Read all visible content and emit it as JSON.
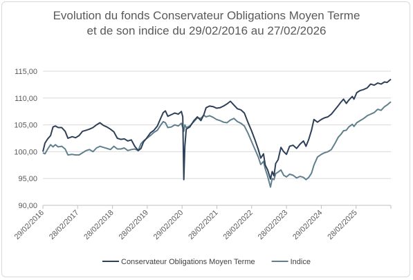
{
  "chart_data": {
    "type": "line",
    "title_line1": "Evolution du fonds Conservateur Obligations Moyen Terme",
    "title_line2": "et de son indice du 29/02/2016 au 27/02/2026",
    "ylim": [
      90,
      115
    ],
    "y_ticks": [
      "90,00",
      "95,00",
      "100,00",
      "105,00",
      "110,00",
      "115,00"
    ],
    "y_tick_values": [
      90,
      95,
      100,
      105,
      110,
      115
    ],
    "x_ticks": [
      "29/02/2016",
      "28/02/2017",
      "28/02/2018",
      "28/02/2019",
      "29/02/2020",
      "28/02/2021",
      "28/02/2022",
      "28/02/2023",
      "29/02/2024",
      "28/02/2025"
    ],
    "x_tick_values": [
      2016.16,
      2017.16,
      2018.16,
      2019.16,
      2020.16,
      2021.16,
      2022.16,
      2023.16,
      2024.16,
      2025.16
    ],
    "xlim": [
      2016.16,
      2026.16
    ],
    "grid": true,
    "legend_position": "bottom",
    "series": [
      {
        "name": "Conservateur Obligations Moyen Terme",
        "color": "#2e3f58",
        "points": [
          [
            2016.16,
            100.0
          ],
          [
            2016.22,
            101.6
          ],
          [
            2016.3,
            102.4
          ],
          [
            2016.38,
            103.0
          ],
          [
            2016.45,
            104.6
          ],
          [
            2016.52,
            104.8
          ],
          [
            2016.6,
            104.5
          ],
          [
            2016.7,
            104.5
          ],
          [
            2016.8,
            103.8
          ],
          [
            2016.88,
            102.5
          ],
          [
            2017.0,
            102.8
          ],
          [
            2017.1,
            102.6
          ],
          [
            2017.2,
            103.0
          ],
          [
            2017.3,
            103.8
          ],
          [
            2017.4,
            104.0
          ],
          [
            2017.5,
            104.2
          ],
          [
            2017.6,
            104.5
          ],
          [
            2017.7,
            105.0
          ],
          [
            2017.8,
            105.4
          ],
          [
            2017.9,
            104.9
          ],
          [
            2018.0,
            104.6
          ],
          [
            2018.1,
            104.2
          ],
          [
            2018.2,
            103.7
          ],
          [
            2018.3,
            102.5
          ],
          [
            2018.4,
            102.3
          ],
          [
            2018.5,
            102.4
          ],
          [
            2018.6,
            102.0
          ],
          [
            2018.7,
            102.2
          ],
          [
            2018.8,
            101.0
          ],
          [
            2018.9,
            100.2
          ],
          [
            2018.98,
            100.6
          ],
          [
            2019.05,
            101.8
          ],
          [
            2019.15,
            102.6
          ],
          [
            2019.25,
            103.5
          ],
          [
            2019.35,
            104.0
          ],
          [
            2019.45,
            104.8
          ],
          [
            2019.55,
            106.3
          ],
          [
            2019.62,
            107.3
          ],
          [
            2019.68,
            107.6
          ],
          [
            2019.75,
            106.6
          ],
          [
            2019.85,
            106.9
          ],
          [
            2019.95,
            107.2
          ],
          [
            2020.05,
            107.0
          ],
          [
            2020.14,
            107.5
          ],
          [
            2020.18,
            106.5
          ],
          [
            2020.21,
            94.8
          ],
          [
            2020.24,
            101.0
          ],
          [
            2020.28,
            104.2
          ],
          [
            2020.38,
            104.6
          ],
          [
            2020.5,
            105.8
          ],
          [
            2020.6,
            106.5
          ],
          [
            2020.7,
            105.8
          ],
          [
            2020.78,
            106.8
          ],
          [
            2020.85,
            108.2
          ],
          [
            2020.95,
            108.5
          ],
          [
            2021.05,
            108.4
          ],
          [
            2021.15,
            108.1
          ],
          [
            2021.25,
            108.2
          ],
          [
            2021.35,
            108.5
          ],
          [
            2021.45,
            108.9
          ],
          [
            2021.55,
            109.4
          ],
          [
            2021.65,
            108.7
          ],
          [
            2021.75,
            108.0
          ],
          [
            2021.85,
            107.8
          ],
          [
            2021.95,
            107.2
          ],
          [
            2022.05,
            105.5
          ],
          [
            2022.15,
            104.0
          ],
          [
            2022.25,
            102.3
          ],
          [
            2022.35,
            100.4
          ],
          [
            2022.42,
            98.8
          ],
          [
            2022.5,
            99.6
          ],
          [
            2022.55,
            97.5
          ],
          [
            2022.62,
            96.6
          ],
          [
            2022.7,
            94.9
          ],
          [
            2022.75,
            96.3
          ],
          [
            2022.8,
            95.5
          ],
          [
            2022.85,
            97.8
          ],
          [
            2022.92,
            98.5
          ],
          [
            2023.0,
            100.8
          ],
          [
            2023.08,
            100.0
          ],
          [
            2023.16,
            99.5
          ],
          [
            2023.25,
            101.0
          ],
          [
            2023.35,
            101.2
          ],
          [
            2023.45,
            100.6
          ],
          [
            2023.55,
            101.4
          ],
          [
            2023.65,
            102.0
          ],
          [
            2023.72,
            101.0
          ],
          [
            2023.8,
            102.3
          ],
          [
            2023.88,
            104.0
          ],
          [
            2023.95,
            106.0
          ],
          [
            2024.05,
            105.5
          ],
          [
            2024.16,
            106.0
          ],
          [
            2024.25,
            106.3
          ],
          [
            2024.35,
            106.5
          ],
          [
            2024.45,
            107.0
          ],
          [
            2024.55,
            107.8
          ],
          [
            2024.65,
            108.6
          ],
          [
            2024.72,
            109.2
          ],
          [
            2024.8,
            109.8
          ],
          [
            2024.88,
            109.0
          ],
          [
            2024.95,
            109.6
          ],
          [
            2025.05,
            110.3
          ],
          [
            2025.1,
            109.8
          ],
          [
            2025.18,
            111.0
          ],
          [
            2025.28,
            111.4
          ],
          [
            2025.38,
            111.6
          ],
          [
            2025.48,
            111.9
          ],
          [
            2025.58,
            112.6
          ],
          [
            2025.68,
            112.4
          ],
          [
            2025.78,
            112.8
          ],
          [
            2025.88,
            112.6
          ],
          [
            2025.98,
            113.0
          ],
          [
            2026.05,
            112.9
          ],
          [
            2026.16,
            113.5
          ]
        ]
      },
      {
        "name": "Indice",
        "color": "#5f7f8d",
        "points": [
          [
            2016.16,
            99.8
          ],
          [
            2016.22,
            99.6
          ],
          [
            2016.3,
            100.5
          ],
          [
            2016.38,
            101.3
          ],
          [
            2016.45,
            100.9
          ],
          [
            2016.52,
            101.3
          ],
          [
            2016.6,
            100.9
          ],
          [
            2016.7,
            101.0
          ],
          [
            2016.8,
            100.5
          ],
          [
            2016.88,
            99.4
          ],
          [
            2017.0,
            99.5
          ],
          [
            2017.1,
            99.4
          ],
          [
            2017.2,
            99.4
          ],
          [
            2017.3,
            99.8
          ],
          [
            2017.4,
            100.2
          ],
          [
            2017.5,
            100.4
          ],
          [
            2017.6,
            100.0
          ],
          [
            2017.7,
            100.7
          ],
          [
            2017.8,
            101.0
          ],
          [
            2017.9,
            100.8
          ],
          [
            2018.0,
            100.6
          ],
          [
            2018.1,
            100.4
          ],
          [
            2018.2,
            101.0
          ],
          [
            2018.3,
            100.5
          ],
          [
            2018.4,
            100.5
          ],
          [
            2018.5,
            100.7
          ],
          [
            2018.6,
            100.2
          ],
          [
            2018.7,
            100.4
          ],
          [
            2018.8,
            100.5
          ],
          [
            2018.9,
            100.2
          ],
          [
            2018.98,
            101.5
          ],
          [
            2019.05,
            102.0
          ],
          [
            2019.15,
            102.5
          ],
          [
            2019.25,
            103.0
          ],
          [
            2019.35,
            103.6
          ],
          [
            2019.45,
            104.0
          ],
          [
            2019.55,
            105.0
          ],
          [
            2019.62,
            105.6
          ],
          [
            2019.68,
            105.4
          ],
          [
            2019.75,
            104.5
          ],
          [
            2019.85,
            104.6
          ],
          [
            2019.95,
            105.0
          ],
          [
            2020.05,
            104.8
          ],
          [
            2020.14,
            105.3
          ],
          [
            2020.18,
            104.5
          ],
          [
            2020.21,
            103.8
          ],
          [
            2020.24,
            105.0
          ],
          [
            2020.28,
            104.5
          ],
          [
            2020.38,
            104.8
          ],
          [
            2020.5,
            105.6
          ],
          [
            2020.6,
            106.3
          ],
          [
            2020.7,
            106.2
          ],
          [
            2020.78,
            106.8
          ],
          [
            2020.85,
            106.5
          ],
          [
            2020.95,
            106.7
          ],
          [
            2021.05,
            106.4
          ],
          [
            2021.15,
            106.0
          ],
          [
            2021.25,
            105.8
          ],
          [
            2021.35,
            105.5
          ],
          [
            2021.45,
            105.4
          ],
          [
            2021.55,
            105.9
          ],
          [
            2021.65,
            106.2
          ],
          [
            2021.75,
            105.6
          ],
          [
            2021.85,
            105.3
          ],
          [
            2021.95,
            104.8
          ],
          [
            2022.05,
            103.5
          ],
          [
            2022.15,
            102.0
          ],
          [
            2022.25,
            100.5
          ],
          [
            2022.35,
            99.0
          ],
          [
            2022.42,
            97.6
          ],
          [
            2022.5,
            98.2
          ],
          [
            2022.55,
            96.8
          ],
          [
            2022.62,
            95.4
          ],
          [
            2022.7,
            93.4
          ],
          [
            2022.75,
            95.0
          ],
          [
            2022.8,
            94.8
          ],
          [
            2022.85,
            95.9
          ],
          [
            2022.92,
            96.2
          ],
          [
            2023.0,
            96.6
          ],
          [
            2023.08,
            95.6
          ],
          [
            2023.16,
            95.3
          ],
          [
            2023.25,
            95.8
          ],
          [
            2023.35,
            95.6
          ],
          [
            2023.45,
            95.1
          ],
          [
            2023.55,
            95.4
          ],
          [
            2023.65,
            95.2
          ],
          [
            2023.72,
            94.8
          ],
          [
            2023.8,
            95.2
          ],
          [
            2023.88,
            96.0
          ],
          [
            2023.95,
            97.5
          ],
          [
            2024.05,
            99.0
          ],
          [
            2024.16,
            99.5
          ],
          [
            2024.25,
            99.8
          ],
          [
            2024.35,
            100.0
          ],
          [
            2024.45,
            100.4
          ],
          [
            2024.55,
            101.5
          ],
          [
            2024.65,
            102.7
          ],
          [
            2024.72,
            103.2
          ],
          [
            2024.8,
            103.9
          ],
          [
            2024.88,
            104.0
          ],
          [
            2024.95,
            104.6
          ],
          [
            2025.05,
            105.1
          ],
          [
            2025.1,
            104.7
          ],
          [
            2025.18,
            105.4
          ],
          [
            2025.28,
            105.8
          ],
          [
            2025.38,
            106.2
          ],
          [
            2025.48,
            106.7
          ],
          [
            2025.58,
            107.0
          ],
          [
            2025.68,
            107.3
          ],
          [
            2025.78,
            107.9
          ],
          [
            2025.88,
            107.7
          ],
          [
            2025.98,
            108.4
          ],
          [
            2026.05,
            108.7
          ],
          [
            2026.16,
            109.3
          ]
        ]
      }
    ]
  }
}
